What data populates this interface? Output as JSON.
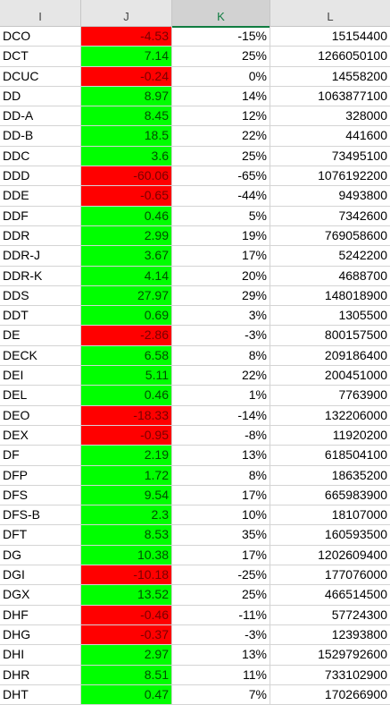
{
  "columns": [
    {
      "letter": "I"
    },
    {
      "letter": "J"
    },
    {
      "letter": "K",
      "selected": true
    },
    {
      "letter": "L"
    }
  ],
  "colors": {
    "negative_fill": "#ff0000",
    "positive_fill": "#00ff00",
    "header_bg": "#e6e6e6",
    "selected_accent": "#107c41"
  },
  "rows": [
    {
      "ticker": "DCO",
      "change": "-4.53",
      "pct": "-15%",
      "volume": "15154400"
    },
    {
      "ticker": "DCT",
      "change": "7.14",
      "pct": "25%",
      "volume": "1266050100"
    },
    {
      "ticker": "DCUC",
      "change": "-0.24",
      "pct": "0%",
      "volume": "14558200"
    },
    {
      "ticker": "DD",
      "change": "8.97",
      "pct": "14%",
      "volume": "1063877100"
    },
    {
      "ticker": "DD-A",
      "change": "8.45",
      "pct": "12%",
      "volume": "328000"
    },
    {
      "ticker": "DD-B",
      "change": "18.5",
      "pct": "22%",
      "volume": "441600"
    },
    {
      "ticker": "DDC",
      "change": "3.6",
      "pct": "25%",
      "volume": "73495100"
    },
    {
      "ticker": "DDD",
      "change": "-60.06",
      "pct": "-65%",
      "volume": "1076192200"
    },
    {
      "ticker": "DDE",
      "change": "-0.65",
      "pct": "-44%",
      "volume": "9493800"
    },
    {
      "ticker": "DDF",
      "change": "0.46",
      "pct": "5%",
      "volume": "7342600"
    },
    {
      "ticker": "DDR",
      "change": "2.99",
      "pct": "19%",
      "volume": "769058600"
    },
    {
      "ticker": "DDR-J",
      "change": "3.67",
      "pct": "17%",
      "volume": "5242200"
    },
    {
      "ticker": "DDR-K",
      "change": "4.14",
      "pct": "20%",
      "volume": "4688700"
    },
    {
      "ticker": "DDS",
      "change": "27.97",
      "pct": "29%",
      "volume": "148018900"
    },
    {
      "ticker": "DDT",
      "change": "0.69",
      "pct": "3%",
      "volume": "1305500"
    },
    {
      "ticker": "DE",
      "change": "-2.86",
      "pct": "-3%",
      "volume": "800157500"
    },
    {
      "ticker": "DECK",
      "change": "6.58",
      "pct": "8%",
      "volume": "209186400"
    },
    {
      "ticker": "DEI",
      "change": "5.11",
      "pct": "22%",
      "volume": "200451000"
    },
    {
      "ticker": "DEL",
      "change": "0.46",
      "pct": "1%",
      "volume": "7763900"
    },
    {
      "ticker": "DEO",
      "change": "-18.33",
      "pct": "-14%",
      "volume": "132206000"
    },
    {
      "ticker": "DEX",
      "change": "-0.95",
      "pct": "-8%",
      "volume": "11920200"
    },
    {
      "ticker": "DF",
      "change": "2.19",
      "pct": "13%",
      "volume": "618504100"
    },
    {
      "ticker": "DFP",
      "change": "1.72",
      "pct": "8%",
      "volume": "18635200"
    },
    {
      "ticker": "DFS",
      "change": "9.54",
      "pct": "17%",
      "volume": "665983900"
    },
    {
      "ticker": "DFS-B",
      "change": "2.3",
      "pct": "10%",
      "volume": "18107000"
    },
    {
      "ticker": "DFT",
      "change": "8.53",
      "pct": "35%",
      "volume": "160593500"
    },
    {
      "ticker": "DG",
      "change": "10.38",
      "pct": "17%",
      "volume": "1202609400"
    },
    {
      "ticker": "DGI",
      "change": "-10.18",
      "pct": "-25%",
      "volume": "177076000"
    },
    {
      "ticker": "DGX",
      "change": "13.52",
      "pct": "25%",
      "volume": "466514500"
    },
    {
      "ticker": "DHF",
      "change": "-0.46",
      "pct": "-11%",
      "volume": "57724300"
    },
    {
      "ticker": "DHG",
      "change": "-0.37",
      "pct": "-3%",
      "volume": "12393800"
    },
    {
      "ticker": "DHI",
      "change": "2.97",
      "pct": "13%",
      "volume": "1529792600"
    },
    {
      "ticker": "DHR",
      "change": "8.51",
      "pct": "11%",
      "volume": "733102900"
    },
    {
      "ticker": "DHT",
      "change": "0.47",
      "pct": "7%",
      "volume": "170266900"
    }
  ]
}
